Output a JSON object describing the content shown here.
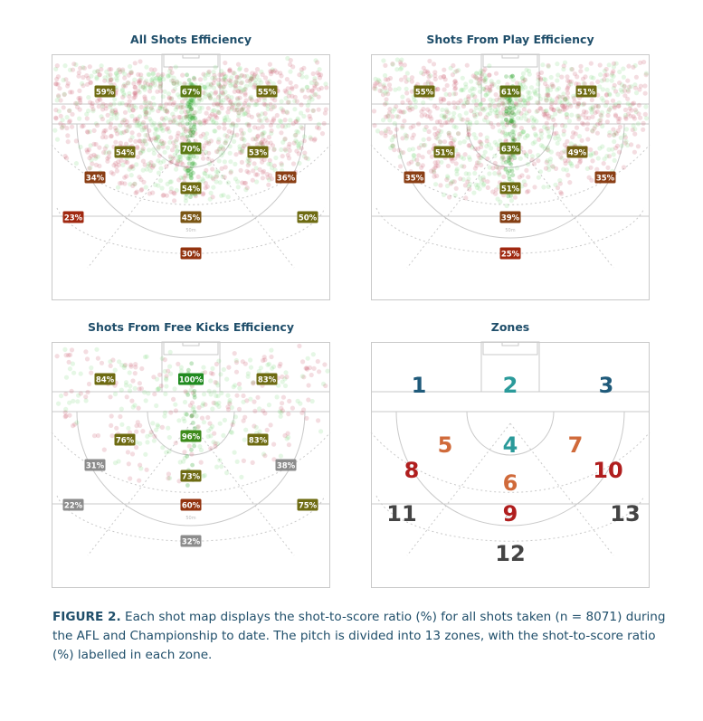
{
  "panels": [
    {
      "title": "All Shots Efficiency",
      "dot_density": 1,
      "labels": [
        {
          "zone": 1,
          "text": "59%",
          "color": "#6e6b12"
        },
        {
          "zone": 2,
          "text": "67%",
          "color": "#5a7a14"
        },
        {
          "zone": 3,
          "text": "55%",
          "color": "#6e6b12"
        },
        {
          "zone": 4,
          "text": "70%",
          "color": "#5a7a14"
        },
        {
          "zone": 5,
          "text": "54%",
          "color": "#6e6b12"
        },
        {
          "zone": 6,
          "text": "54%",
          "color": "#6e6b12"
        },
        {
          "zone": 7,
          "text": "53%",
          "color": "#6e6b12"
        },
        {
          "zone": 8,
          "text": "34%",
          "color": "#8a3e14"
        },
        {
          "zone": 9,
          "text": "45%",
          "color": "#7a5614"
        },
        {
          "zone": 10,
          "text": "36%",
          "color": "#8a3e14"
        },
        {
          "zone": 11,
          "text": "23%",
          "color": "#a02810"
        },
        {
          "zone": 12,
          "text": "30%",
          "color": "#93330f"
        },
        {
          "zone": 13,
          "text": "50%",
          "color": "#6e6b12"
        }
      ]
    },
    {
      "title": "Shots From Play Efficiency",
      "dot_density": 0.85,
      "labels": [
        {
          "zone": 1,
          "text": "55%",
          "color": "#6e6b12"
        },
        {
          "zone": 2,
          "text": "61%",
          "color": "#617314"
        },
        {
          "zone": 3,
          "text": "51%",
          "color": "#6e6b12"
        },
        {
          "zone": 4,
          "text": "63%",
          "color": "#617314"
        },
        {
          "zone": 5,
          "text": "51%",
          "color": "#6e6b12"
        },
        {
          "zone": 6,
          "text": "51%",
          "color": "#6e6b12"
        },
        {
          "zone": 7,
          "text": "49%",
          "color": "#735f13"
        },
        {
          "zone": 8,
          "text": "35%",
          "color": "#8a3e14"
        },
        {
          "zone": 9,
          "text": "39%",
          "color": "#843e13"
        },
        {
          "zone": 10,
          "text": "35%",
          "color": "#8a3e14"
        },
        {
          "zone": 12,
          "text": "25%",
          "color": "#a02810"
        }
      ]
    },
    {
      "title": "Shots From Free Kicks Efficiency",
      "dot_density": 0.3,
      "labels": [
        {
          "zone": 1,
          "text": "84%",
          "color": "#6e6b12"
        },
        {
          "zone": 2,
          "text": "100%",
          "color": "#1f8a1f"
        },
        {
          "zone": 3,
          "text": "83%",
          "color": "#6e6b12"
        },
        {
          "zone": 4,
          "text": "96%",
          "color": "#3d8a1a"
        },
        {
          "zone": 5,
          "text": "76%",
          "color": "#6e6b12"
        },
        {
          "zone": 6,
          "text": "73%",
          "color": "#6e6b12"
        },
        {
          "zone": 7,
          "text": "83%",
          "color": "#6e6b12"
        },
        {
          "zone": 8,
          "text": "31%",
          "color": "#8c8c8c"
        },
        {
          "zone": 9,
          "text": "60%",
          "color": "#93330f"
        },
        {
          "zone": 10,
          "text": "38%",
          "color": "#8c8c8c"
        },
        {
          "zone": 11,
          "text": "22%",
          "color": "#8c8c8c"
        },
        {
          "zone": 12,
          "text": "32%",
          "color": "#8c8c8c"
        },
        {
          "zone": 13,
          "text": "75%",
          "color": "#6e6b12"
        }
      ]
    },
    {
      "title": "Zones",
      "zones": [
        {
          "zone": 1,
          "text": "1",
          "color": "#1f5a7a"
        },
        {
          "zone": 2,
          "text": "2",
          "color": "#2a9a9a"
        },
        {
          "zone": 3,
          "text": "3",
          "color": "#1f5a7a"
        },
        {
          "zone": 4,
          "text": "4",
          "color": "#2a9a9a"
        },
        {
          "zone": 5,
          "text": "5",
          "color": "#d06a3a"
        },
        {
          "zone": 6,
          "text": "6",
          "color": "#d06a3a"
        },
        {
          "zone": 7,
          "text": "7",
          "color": "#d06a3a"
        },
        {
          "zone": 8,
          "text": "8",
          "color": "#b01e1e"
        },
        {
          "zone": 9,
          "text": "9",
          "color": "#b01e1e"
        },
        {
          "zone": 10,
          "text": "10",
          "color": "#b01e1e"
        },
        {
          "zone": 11,
          "text": "11",
          "color": "#444444"
        },
        {
          "zone": 12,
          "text": "12",
          "color": "#444444"
        },
        {
          "zone": 13,
          "text": "13",
          "color": "#444444"
        }
      ]
    }
  ],
  "pitch_marking": "50m",
  "caption": {
    "figure_label": "FIGURE 2.",
    "text": "Each shot map displays the shot-to-score ratio (%) for all shots taken (n = 8071) during the AFL and Championship to date. The pitch is divided into 13 zones, with the shot-to-score ratio (%) labelled in each zone."
  }
}
